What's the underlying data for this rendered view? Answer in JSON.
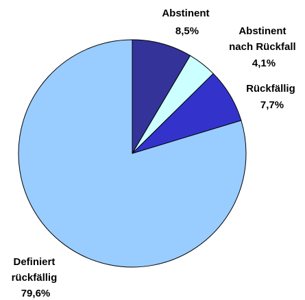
{
  "chart_data": {
    "type": "pie",
    "slices": [
      {
        "label": "Abstinent",
        "value": 8.5,
        "value_label": "8,5%",
        "color": "#333399"
      },
      {
        "label": "Abstinent nach Rückfall",
        "label_lines": [
          "Abstinent",
          "nach Rückfall"
        ],
        "value": 4.1,
        "value_label": "4,1%",
        "color": "#ccffff"
      },
      {
        "label": "Rückfällig",
        "value": 7.7,
        "value_label": "7,7%",
        "color": "#3333cc"
      },
      {
        "label": "Definiert rückfällig",
        "label_lines": [
          "Definiert",
          "rückfällig"
        ],
        "value": 79.6,
        "value_label": "79,6%",
        "color": "#99ccff"
      }
    ],
    "start_angle": "12 o'clock",
    "direction": "clockwise",
    "legend": "none"
  }
}
